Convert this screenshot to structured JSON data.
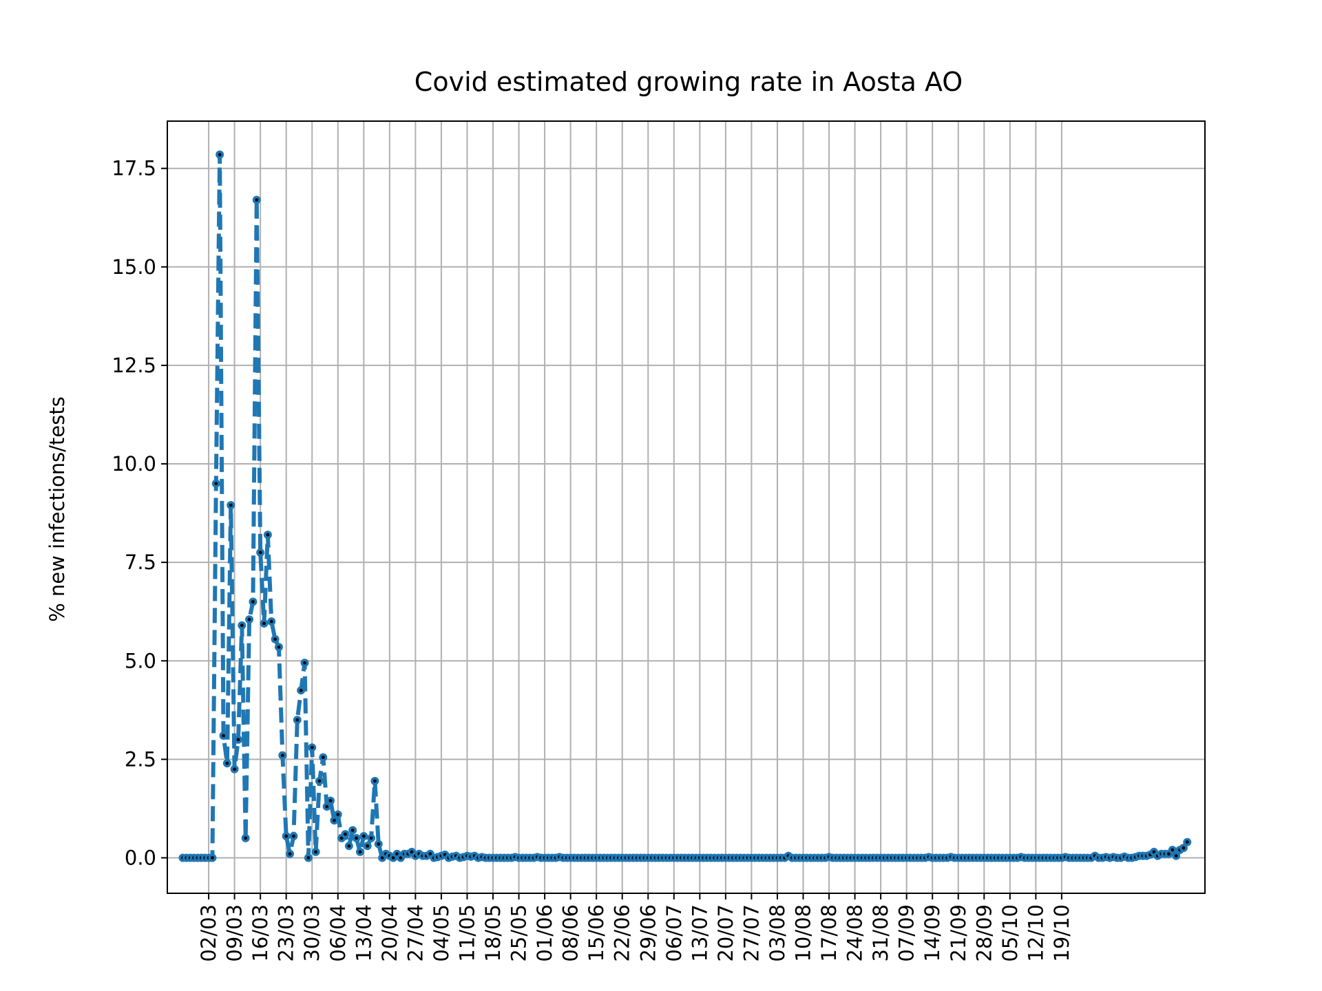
{
  "chart_data": {
    "type": "line",
    "title": "Covid estimated growing rate in Aosta AO",
    "xlabel": "",
    "ylabel": "% new infections/tests",
    "ylim": [
      -0.9,
      18.7
    ],
    "yticks": [
      0.0,
      2.5,
      5.0,
      7.5,
      10.0,
      12.5,
      15.0,
      17.5
    ],
    "ytick_labels": [
      "0.0",
      "2.5",
      "5.0",
      "7.5",
      "10.0",
      "12.5",
      "15.0",
      "17.5"
    ],
    "x_start": "2020-02-24",
    "xtick_labels": [
      "02/03",
      "09/03",
      "16/03",
      "23/03",
      "30/03",
      "06/04",
      "13/04",
      "20/04",
      "27/04",
      "04/05",
      "11/05",
      "18/05",
      "25/05",
      "01/06",
      "08/06",
      "15/06",
      "22/06",
      "29/06",
      "06/07",
      "13/07",
      "20/07",
      "27/07",
      "03/08",
      "10/08",
      "17/08",
      "24/08",
      "31/08",
      "07/09",
      "14/09",
      "21/09",
      "28/09",
      "05/10",
      "12/10",
      "19/10"
    ],
    "grid": true,
    "series": [
      {
        "line_style": "dashed",
        "marker": "circle",
        "values": [
          0,
          0,
          0,
          0,
          0,
          0,
          0,
          0,
          0,
          9.5,
          17.85,
          3.1,
          2.4,
          8.95,
          2.25,
          3.0,
          5.9,
          0.5,
          6.05,
          6.5,
          16.7,
          7.75,
          5.95,
          8.2,
          6.0,
          5.55,
          5.35,
          2.6,
          0.55,
          0.1,
          0.55,
          3.5,
          4.25,
          4.95,
          0.0,
          2.8,
          0.15,
          1.95,
          2.55,
          1.3,
          1.45,
          0.95,
          1.1,
          0.5,
          0.6,
          0.3,
          0.7,
          0.5,
          0.15,
          0.55,
          0.3,
          0.5,
          1.95,
          0.35,
          0.0,
          0.1,
          0.05,
          0.0,
          0.1,
          0.0,
          0.1,
          0.1,
          0.15,
          0.05,
          0.1,
          0.05,
          0.05,
          0.1,
          0.0,
          0.02,
          0.05,
          0.08,
          0.0,
          0.03,
          0.05,
          0.0,
          0.02,
          0.05,
          0.03,
          0.05,
          0.0,
          0.02,
          0.0,
          0.0,
          0.0,
          0.0,
          0.0,
          0.0,
          0.0,
          0.0,
          0.02,
          0.0,
          0.0,
          0.0,
          0.0,
          0.0,
          0.02,
          0.0,
          0.0,
          0.0,
          0.0,
          0.0,
          0.02,
          0.0,
          0.0,
          0.0,
          0.0,
          0.0,
          0.0,
          0.0,
          0.0,
          0.0,
          0.0,
          0.0,
          0.0,
          0.0,
          0.0,
          0.0,
          0.0,
          0.0,
          0.0,
          0.0,
          0.0,
          0.0,
          0.0,
          0.0,
          0.0,
          0.0,
          0.0,
          0.0,
          0.0,
          0.0,
          0.0,
          0.0,
          0.0,
          0.0,
          0.0,
          0.0,
          0.0,
          0.0,
          0.0,
          0.0,
          0.0,
          0.0,
          0.0,
          0.0,
          0.0,
          0.0,
          0.0,
          0.0,
          0.0,
          0.0,
          0.0,
          0.0,
          0.0,
          0.0,
          0.0,
          0.0,
          0.0,
          0.0,
          0.0,
          0.0,
          0.0,
          0.0,
          0.05,
          0.0,
          0.0,
          0.0,
          0.0,
          0.0,
          0.0,
          0.0,
          0.0,
          0.0,
          0.0,
          0.02,
          0.0,
          0.0,
          0.0,
          0.0,
          0.0,
          0.0,
          0.0,
          0.0,
          0.0,
          0.0,
          0.0,
          0.0,
          0.0,
          0.0,
          0.0,
          0.0,
          0.0,
          0.0,
          0.0,
          0.0,
          0.0,
          0.0,
          0.0,
          0.0,
          0.0,
          0.0,
          0.02,
          0.0,
          0.0,
          0.0,
          0.0,
          0.0,
          0.02,
          0.0,
          0.0,
          0.0,
          0.0,
          0.0,
          0.0,
          0.0,
          0.0,
          0.0,
          0.0,
          0.0,
          0.0,
          0.0,
          0.0,
          0.0,
          0.0,
          0.0,
          0.0,
          0.02,
          0.0,
          0.0,
          0.0,
          0.0,
          0.0,
          0.0,
          0.0,
          0.0,
          0.0,
          0.0,
          0.0,
          0.02,
          0.0,
          0.0,
          0.0,
          0.0,
          0.0,
          0.0,
          0.0,
          0.05,
          0.0,
          0.0,
          0.02,
          0.0,
          0.02,
          0.0,
          0.0,
          0.03,
          0.0,
          0.0,
          0.02,
          0.05,
          0.05,
          0.05,
          0.08,
          0.15,
          0.05,
          0.1,
          0.1,
          0.1,
          0.2,
          0.05,
          0.2,
          0.25,
          0.4
        ]
      }
    ]
  },
  "colors": {
    "line": "#1f77b4",
    "marker_center": "#000000",
    "grid": "#b0b0b0",
    "axes": "#000000",
    "background": "#ffffff"
  }
}
